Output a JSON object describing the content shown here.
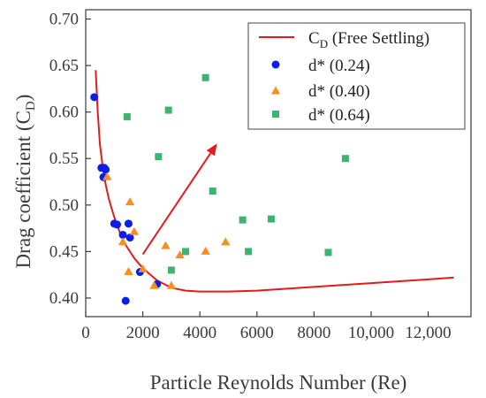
{
  "chart_data": {
    "type": "scatter",
    "xlabel": "Particle Reynolds Number (Re)",
    "ylabel_main": "Drag coefficient (C",
    "ylabel_sub": "D",
    "ylabel_end": ")",
    "xlim": [
      0,
      13500
    ],
    "ylim": [
      0.38,
      0.71
    ],
    "xticks": [
      0,
      2000,
      4000,
      6000,
      8000,
      10000,
      12000
    ],
    "xtick_labels": [
      "0",
      "2000",
      "4000",
      "6000",
      "8000",
      "10,000",
      "12,000"
    ],
    "yticks": [
      0.4,
      0.45,
      0.5,
      0.55,
      0.6,
      0.65,
      0.7
    ],
    "ytick_labels": [
      "0.40",
      "0.45",
      "0.50",
      "0.55",
      "0.60",
      "0.65",
      "0.70"
    ],
    "legend_position": "top-right",
    "curve": {
      "name_main": "C",
      "name_sub": "D",
      "name_rest": " (Free Settling)",
      "color": "#e41a1c",
      "x": [
        350,
        420,
        500,
        600,
        700,
        800,
        900,
        1000,
        1200,
        1400,
        1700,
        2000,
        2500,
        3000,
        3500,
        4000,
        5000,
        6000,
        7000,
        8000,
        9000,
        10000,
        11000,
        12000,
        12900
      ],
      "y": [
        0.645,
        0.6,
        0.565,
        0.54,
        0.522,
        0.508,
        0.497,
        0.487,
        0.47,
        0.457,
        0.443,
        0.432,
        0.419,
        0.411,
        0.408,
        0.407,
        0.407,
        0.408,
        0.41,
        0.412,
        0.414,
        0.416,
        0.418,
        0.42,
        0.422
      ]
    },
    "series": [
      {
        "name": "d* (0.24)",
        "marker": "circle",
        "color": "#0a1ee8",
        "x": [
          300,
          550,
          650,
          700,
          620,
          1000,
          1100,
          1300,
          1500,
          1550,
          1900,
          2500,
          1400
        ],
        "y": [
          0.616,
          0.54,
          0.54,
          0.538,
          0.53,
          0.48,
          0.479,
          0.468,
          0.48,
          0.465,
          0.428,
          0.415,
          0.397
        ]
      },
      {
        "name": "d* (0.40)",
        "marker": "triangle",
        "color": "#f5901e",
        "x": [
          750,
          1550,
          1700,
          1300,
          1500,
          2000,
          2400,
          2800,
          3000,
          3300,
          4200,
          4900
        ],
        "y": [
          0.53,
          0.503,
          0.471,
          0.46,
          0.428,
          0.431,
          0.413,
          0.456,
          0.413,
          0.446,
          0.45,
          0.46
        ]
      },
      {
        "name": "d* (0.64)",
        "marker": "square",
        "color": "#3cb371",
        "x": [
          1450,
          2550,
          2900,
          4200,
          4450,
          3500,
          3000,
          5500,
          6500,
          5700,
          8500,
          9100
        ],
        "y": [
          0.595,
          0.552,
          0.602,
          0.637,
          0.515,
          0.45,
          0.43,
          0.484,
          0.485,
          0.45,
          0.449,
          0.55
        ]
      }
    ],
    "arrow": {
      "color": "#e41a1c",
      "from": [
        2000,
        0.447
      ],
      "to": [
        4600,
        0.566
      ]
    }
  }
}
